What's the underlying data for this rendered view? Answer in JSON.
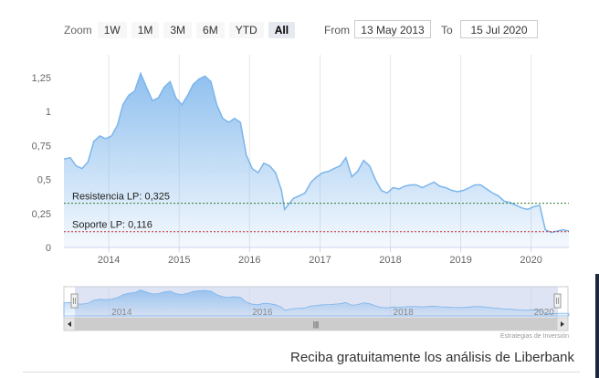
{
  "toolbar": {
    "zoom_label": "Zoom",
    "zoom_buttons": [
      "1W",
      "1M",
      "3M",
      "6M",
      "YTD",
      "All"
    ],
    "active_zoom": "All",
    "from_label": "From",
    "from_value": "13 May 2013",
    "to_label": "To",
    "to_value": "15 Jul 2020"
  },
  "chart_data": {
    "type": "area",
    "title": "",
    "xlabel": "",
    "ylabel": "",
    "ylim": [
      0,
      1.35
    ],
    "y_ticks": [
      "0",
      "0,25",
      "0,5",
      "0,75",
      "1",
      "1,25"
    ],
    "x_ticks": [
      "2014",
      "2015",
      "2016",
      "2017",
      "2018",
      "2019",
      "2020"
    ],
    "grid": "vertical",
    "series_color": "#7cb5ec",
    "series": [
      {
        "x": [
          "2013-05-13",
          "2013-06-15",
          "2013-07-15",
          "2013-08-15",
          "2013-09-15",
          "2013-10-15",
          "2013-11-15",
          "2013-12-15",
          "2014-01-15",
          "2014-02-15",
          "2014-03-15",
          "2014-04-15",
          "2014-05-15",
          "2014-06-15",
          "2014-07-15",
          "2014-08-15",
          "2014-09-15",
          "2014-10-15",
          "2014-11-15",
          "2014-12-15",
          "2015-01-15",
          "2015-02-15",
          "2015-03-15",
          "2015-04-15",
          "2015-05-15",
          "2015-06-15",
          "2015-07-15",
          "2015-08-15",
          "2015-09-15",
          "2015-10-15",
          "2015-11-15",
          "2015-12-15",
          "2016-01-15",
          "2016-02-15",
          "2016-03-15",
          "2016-04-15",
          "2016-05-15",
          "2016-06-15",
          "2016-07-01",
          "2016-08-15",
          "2016-09-15",
          "2016-10-15",
          "2016-11-15",
          "2016-12-15",
          "2017-01-15",
          "2017-02-15",
          "2017-03-15",
          "2017-04-15",
          "2017-05-15",
          "2017-06-15",
          "2017-07-15",
          "2017-08-15",
          "2017-09-15",
          "2017-10-15",
          "2017-11-15",
          "2017-12-15",
          "2018-01-15",
          "2018-02-15",
          "2018-03-15",
          "2018-04-15",
          "2018-05-15",
          "2018-06-15",
          "2018-07-15",
          "2018-08-15",
          "2018-09-15",
          "2018-10-15",
          "2018-11-15",
          "2018-12-15",
          "2019-01-15",
          "2019-02-15",
          "2019-03-15",
          "2019-04-15",
          "2019-05-15",
          "2019-06-15",
          "2019-07-15",
          "2019-08-15",
          "2019-09-15",
          "2019-10-15",
          "2019-11-15",
          "2019-12-15",
          "2020-01-15",
          "2020-02-15",
          "2020-03-15",
          "2020-04-15",
          "2020-05-15",
          "2020-06-15",
          "2020-07-15"
        ],
        "y": [
          0.65,
          0.66,
          0.6,
          0.58,
          0.63,
          0.78,
          0.82,
          0.8,
          0.82,
          0.9,
          1.05,
          1.12,
          1.15,
          1.28,
          1.18,
          1.08,
          1.1,
          1.18,
          1.22,
          1.1,
          1.05,
          1.12,
          1.2,
          1.24,
          1.26,
          1.22,
          1.05,
          0.95,
          0.92,
          0.95,
          0.92,
          0.68,
          0.58,
          0.55,
          0.62,
          0.6,
          0.55,
          0.42,
          0.28,
          0.36,
          0.38,
          0.4,
          0.48,
          0.52,
          0.55,
          0.56,
          0.58,
          0.6,
          0.66,
          0.52,
          0.56,
          0.64,
          0.6,
          0.5,
          0.42,
          0.4,
          0.44,
          0.43,
          0.45,
          0.46,
          0.46,
          0.44,
          0.46,
          0.48,
          0.45,
          0.44,
          0.42,
          0.41,
          0.42,
          0.44,
          0.46,
          0.46,
          0.43,
          0.4,
          0.38,
          0.34,
          0.33,
          0.31,
          0.29,
          0.28,
          0.3,
          0.31,
          0.13,
          0.11,
          0.12,
          0.13,
          0.12
        ]
      }
    ],
    "annotations": [
      {
        "label": "Resistencia LP: 0,325",
        "value": 0.325,
        "color": "#2e7d32"
      },
      {
        "label": "Soporte LP: 0,116",
        "value": 0.116,
        "color": "#c62828"
      }
    ]
  },
  "navigator": {
    "x_ticks": [
      "2014",
      "2016",
      "2018",
      "2020"
    ],
    "scrollbar_handle": "|||"
  },
  "credits": "Estrategias de Inversión",
  "footer": {
    "text": "Reciba gratuitamente los análisis de Liberbank"
  }
}
